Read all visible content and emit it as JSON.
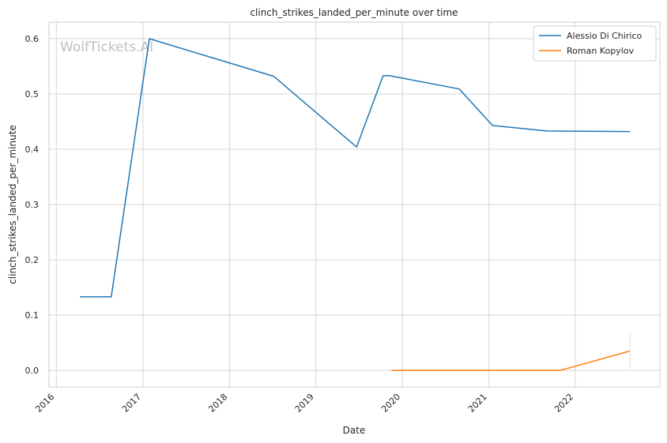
{
  "watermark": "WolfTickets.AI",
  "colors": {
    "background": "#ffffff",
    "plot_background": "#ffffff",
    "grid": "#d6d6d6",
    "axes_edge": "#cccccc",
    "text": "#262626",
    "watermark": "#c0c0c0"
  },
  "chart_data": {
    "type": "line",
    "title": "clinch_strikes_landed_per_minute over time",
    "xlabel": "Date",
    "ylabel": "clinch_strikes_landed_per_minute",
    "x_is_date": true,
    "xlim": [
      "2015-12-01",
      "2022-12-24"
    ],
    "ylim": [
      -0.03,
      0.63
    ],
    "xticks": [
      "2016",
      "2017",
      "2018",
      "2019",
      "2020",
      "2021",
      "2022"
    ],
    "xtick_dates": [
      "2016-01-01",
      "2017-01-01",
      "2018-01-01",
      "2019-01-01",
      "2020-01-01",
      "2021-01-01",
      "2022-01-01"
    ],
    "yticks": [
      0.0,
      0.1,
      0.2,
      0.3,
      0.4,
      0.5,
      0.6
    ],
    "ytick_labels": [
      "0.0",
      "0.1",
      "0.2",
      "0.3",
      "0.4",
      "0.5",
      "0.6"
    ],
    "grid": true,
    "legend_position": "top-right",
    "series": [
      {
        "name": "Alessio Di Chirico",
        "color": "#1f77b4",
        "points": [
          {
            "x": "2016-04-10",
            "y": 0.133
          },
          {
            "x": "2016-08-20",
            "y": 0.133
          },
          {
            "x": "2017-01-28",
            "y": 0.6
          },
          {
            "x": "2018-07-07",
            "y": 0.532
          },
          {
            "x": "2019-06-22",
            "y": 0.404
          },
          {
            "x": "2019-10-12",
            "y": 0.533
          },
          {
            "x": "2019-11-09",
            "y": 0.533
          },
          {
            "x": "2020-08-29",
            "y": 0.509
          },
          {
            "x": "2021-01-16",
            "y": 0.443
          },
          {
            "x": "2021-09-04",
            "y": 0.433
          },
          {
            "x": "2022-08-20",
            "y": 0.432
          }
        ]
      },
      {
        "name": "Roman Kopylov",
        "color": "#ff7f0e",
        "points": [
          {
            "x": "2019-11-16",
            "y": 0.0
          },
          {
            "x": "2021-10-30",
            "y": 0.0
          },
          {
            "x": "2022-08-20",
            "y": 0.035
          }
        ]
      }
    ]
  }
}
